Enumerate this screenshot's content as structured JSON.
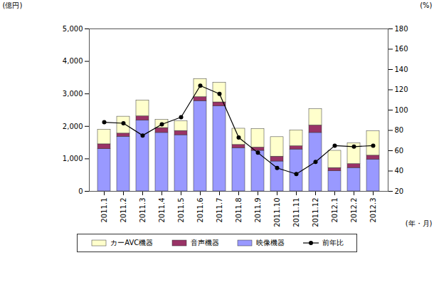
{
  "chart_data": {
    "type": "bar",
    "stacked": true,
    "grid": false,
    "legend": "bottom",
    "y_label": "(億円)",
    "y2_label": "(%)",
    "x_label": "(年・月)",
    "categories": [
      "2011.1",
      "2011.2",
      "2011.3",
      "2011.4",
      "2011.5",
      "2011.6",
      "2011.7",
      "2011.8",
      "2011.9",
      "2011.10",
      "2011.11",
      "2011.12",
      "2012.1",
      "2012.2",
      "2012.3"
    ],
    "ylim": [
      0,
      5000
    ],
    "yticks": [
      0,
      {
        "value": 1000,
        "label": "1,000"
      },
      {
        "value": 2000,
        "label": "2,000"
      },
      {
        "value": 3000,
        "label": "3,000"
      },
      {
        "value": 4000,
        "label": "4,000"
      },
      {
        "value": 5000,
        "label": "5,000"
      }
    ],
    "y2lim": [
      20,
      180
    ],
    "y2ticks": [
      20,
      40,
      60,
      80,
      100,
      120,
      140,
      160,
      180
    ],
    "series": [
      {
        "name": "カーAVC機器",
        "type": "bar",
        "color": "#ffffcc",
        "values": [
          450,
          520,
          490,
          250,
          300,
          560,
          600,
          500,
          570,
          600,
          490,
          500,
          530,
          640,
          750
        ]
      },
      {
        "name": "音声機器",
        "type": "bar",
        "color": "#993366",
        "values": [
          150,
          100,
          130,
          150,
          130,
          120,
          120,
          100,
          100,
          150,
          100,
          230,
          100,
          120,
          120
        ]
      },
      {
        "name": "映像機器",
        "type": "bar",
        "color": "#9999ff",
        "values": [
          1300,
          1680,
          2180,
          1800,
          1730,
          2780,
          2620,
          1330,
          1250,
          920,
          1290,
          1800,
          620,
          720,
          980
        ]
      },
      {
        "name": "前年比",
        "type": "line",
        "axis": "y2",
        "color": "#000000",
        "marker": "circle",
        "line_style": "solid",
        "values": [
          88,
          87,
          75,
          86,
          93,
          124,
          116,
          73,
          58,
          43,
          37,
          49,
          65,
          64,
          65
        ]
      }
    ]
  }
}
